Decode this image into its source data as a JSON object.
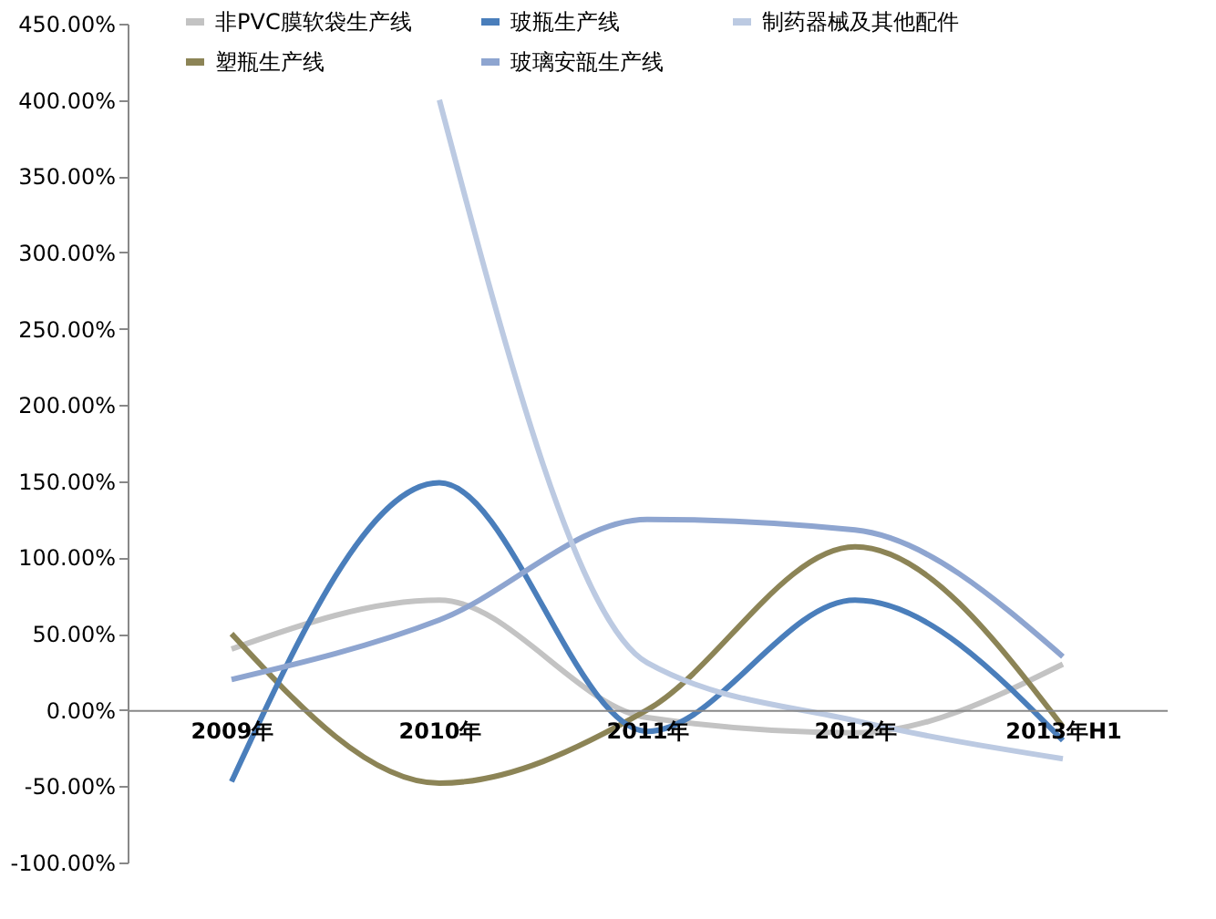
{
  "chart_data": {
    "type": "line",
    "categories": [
      "2009年",
      "2010年",
      "2011年",
      "2012年",
      "2013年H1"
    ],
    "series": [
      {
        "name": "非PVC膜软袋生产线",
        "color": "#c3c3c3",
        "values": [
          40,
          72,
          -5,
          -15,
          30
        ]
      },
      {
        "name": "塑瓶生产线",
        "color": "#8c8456",
        "values": [
          50,
          -48,
          0,
          107,
          -11
        ]
      },
      {
        "name": "玻瓶生产线",
        "color": "#4a7ebb",
        "values": [
          -47,
          149,
          -14,
          72,
          -20
        ]
      },
      {
        "name": "玻璃安瓿生产线",
        "color": "#8ea5d0",
        "values": [
          20,
          59,
          125,
          118,
          35
        ]
      },
      {
        "name": "制药器械及其他配件",
        "color": "#bccae2",
        "values": [
          null,
          400,
          31,
          -7,
          -32
        ]
      }
    ],
    "ylim": [
      -100,
      450
    ],
    "yticks": [
      {
        "value": -100,
        "label": "-100.00%"
      },
      {
        "value": -50,
        "label": "-50.00%"
      },
      {
        "value": 0,
        "label": "0.00%"
      },
      {
        "value": 50,
        "label": "50.00%"
      },
      {
        "value": 100,
        "label": "100.00%"
      },
      {
        "value": 150,
        "label": "150.00%"
      },
      {
        "value": 200,
        "label": "200.00%"
      },
      {
        "value": 250,
        "label": "250.00%"
      },
      {
        "value": 300,
        "label": "300.00%"
      },
      {
        "value": 350,
        "label": "350.00%"
      },
      {
        "value": 400,
        "label": "400.00%"
      },
      {
        "value": 450,
        "label": "450.00%"
      }
    ],
    "grid": false,
    "legend": "top",
    "marker": "none",
    "line_style": "solid"
  }
}
